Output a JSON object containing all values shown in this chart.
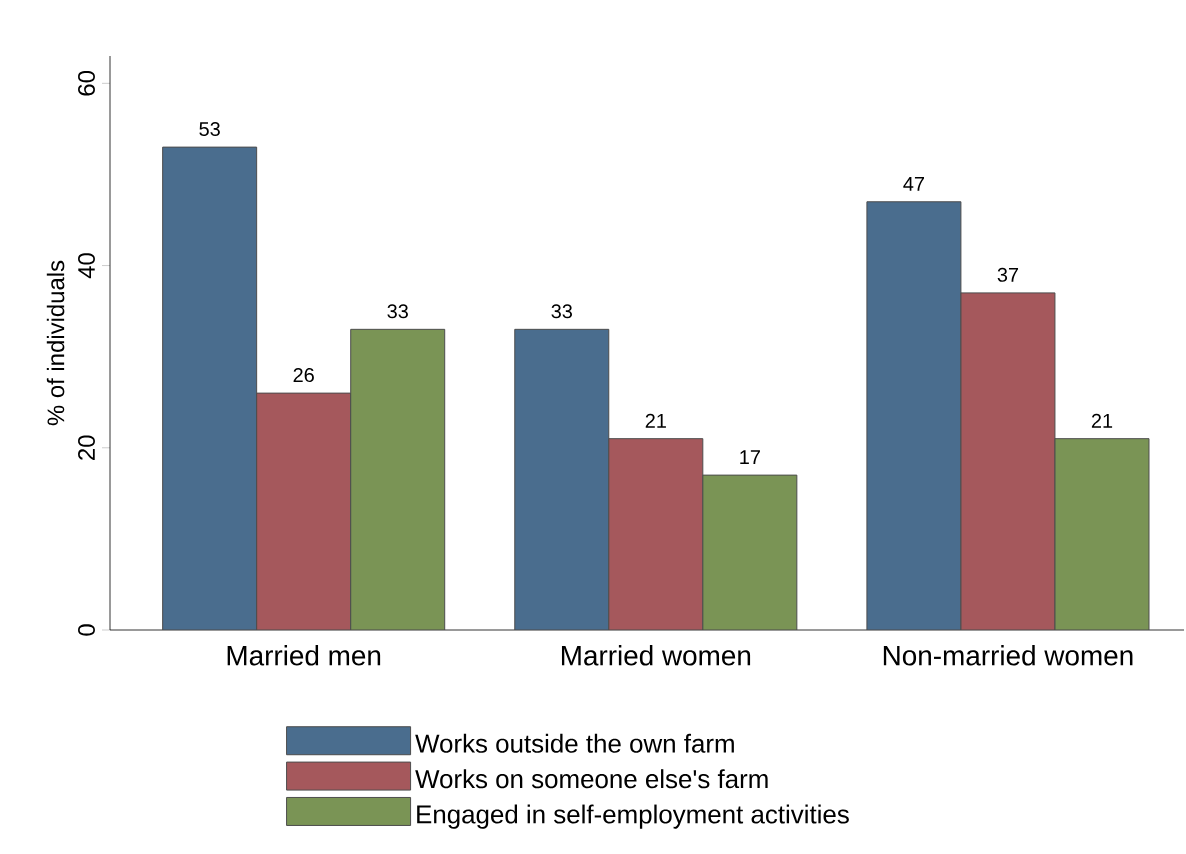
{
  "chart_data": {
    "type": "bar",
    "ylabel": "% of individuals",
    "categories": [
      "Married men",
      "Married women",
      "Non-married women"
    ],
    "series": [
      {
        "name": "Works outside the own farm",
        "color": "#4a6d8e",
        "values": [
          53,
          33,
          47
        ]
      },
      {
        "name": "Works on someone else's farm",
        "color": "#a5585c",
        "values": [
          26,
          21,
          37
        ]
      },
      {
        "name": "Engaged in self-employment activities",
        "color": "#7a9455",
        "values": [
          33,
          17,
          21
        ]
      }
    ],
    "ylim": [
      0,
      63
    ],
    "yticks": [
      0,
      20,
      40,
      60
    ],
    "data_labels": true,
    "legend": "bottom"
  }
}
